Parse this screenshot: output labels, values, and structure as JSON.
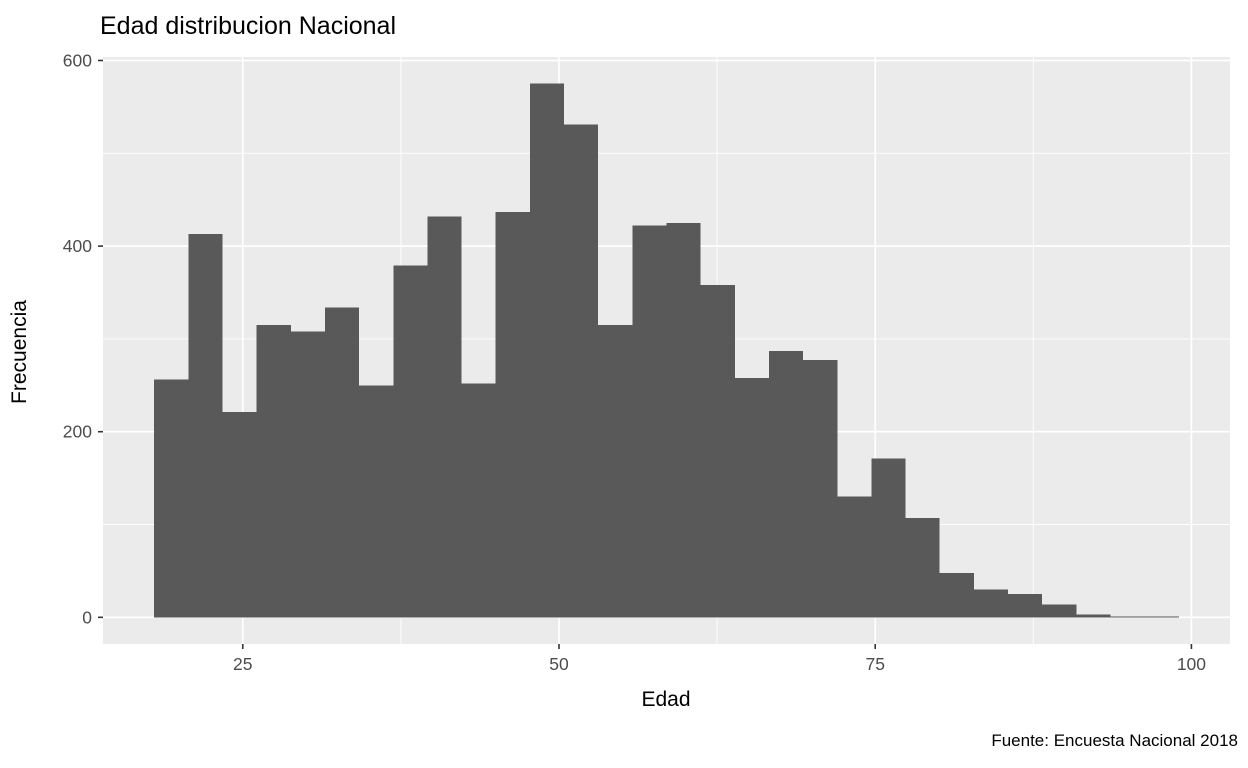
{
  "chart_data": {
    "type": "bar",
    "subtype": "histogram",
    "title": "Edad distribucion Nacional",
    "xlabel": "Edad",
    "ylabel": "Frecuencia",
    "caption": "Fuente: Encuesta Nacional 2018",
    "bin_start": 18,
    "bin_width": 2.7,
    "bin_edges": [
      18,
      20.7,
      23.4,
      26.1,
      28.8,
      31.5,
      34.2,
      36.9,
      39.6,
      42.3,
      45,
      47.7,
      50.4,
      53.1,
      55.8,
      58.5,
      61.2,
      63.9,
      66.6,
      69.3,
      72,
      74.7,
      77.4,
      80.1,
      82.8,
      85.5,
      88.2,
      90.9,
      93.6,
      96.3,
      99
    ],
    "counts": [
      256,
      413,
      221,
      315,
      308,
      334,
      250,
      379,
      432,
      252,
      437,
      575,
      531,
      315,
      422,
      425,
      358,
      258,
      287,
      277,
      130,
      171,
      107,
      48,
      30,
      25,
      14,
      3,
      1,
      1
    ],
    "x_ticks": [
      25,
      50,
      75,
      100
    ],
    "y_ticks": [
      0,
      200,
      400,
      600
    ],
    "x_minor_gridlines": [
      37.5,
      62.5,
      87.5
    ],
    "y_minor_gridlines": [
      100,
      300,
      500
    ],
    "xlim": [
      13.95,
      103.05
    ],
    "ylim": [
      -28.75,
      603.75
    ],
    "grid": "on",
    "legend": "none",
    "colors": {
      "bar_fill": "#595959",
      "panel_background": "#EBEBEB",
      "grid_major": "#FFFFFF",
      "grid_minor": "#FFFFFF",
      "tick_label": "#4D4D4D",
      "tick_mark": "#333333",
      "title": "#000000"
    }
  }
}
